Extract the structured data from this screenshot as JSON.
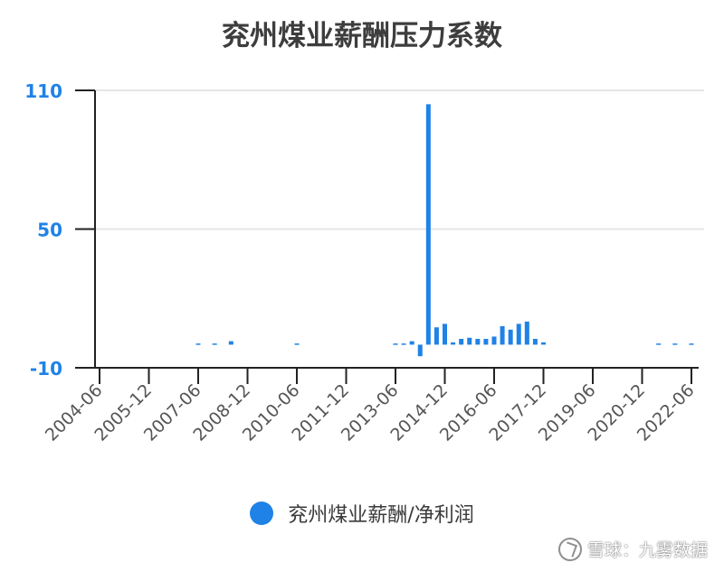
{
  "chart_data": {
    "type": "bar",
    "title": "兖州煤业薪酬压力系数",
    "xlabel": "",
    "ylabel": "",
    "ylim": [
      -10,
      110
    ],
    "yticks": [
      "110",
      "50",
      "-10"
    ],
    "xtick_labels": [
      "2004-06",
      "2005-12",
      "2007-06",
      "2008-12",
      "2010-06",
      "2011-12",
      "2013-06",
      "2014-12",
      "2016-06",
      "2017-12",
      "2019-06",
      "2020-12",
      "2022-06"
    ],
    "grid": true,
    "legend_position": "bottom",
    "series": [
      {
        "name": "兖州煤业薪酬/净利润",
        "color": "#1f82e6",
        "points": [
          {
            "x": "2007-06",
            "y": 0.5
          },
          {
            "x": "2007-12",
            "y": 0.5
          },
          {
            "x": "2008-06",
            "y": 1.5
          },
          {
            "x": "2010-06",
            "y": 0.5
          },
          {
            "x": "2013-06",
            "y": 0.5
          },
          {
            "x": "2013-09",
            "y": 0.5
          },
          {
            "x": "2013-12",
            "y": 1.5
          },
          {
            "x": "2014-03",
            "y": -5
          },
          {
            "x": "2014-06",
            "y": 104
          },
          {
            "x": "2014-09",
            "y": 7.5
          },
          {
            "x": "2014-12",
            "y": 9
          },
          {
            "x": "2015-03",
            "y": 1
          },
          {
            "x": "2015-06",
            "y": 2.5
          },
          {
            "x": "2015-09",
            "y": 3
          },
          {
            "x": "2015-12",
            "y": 2.5
          },
          {
            "x": "2016-03",
            "y": 2.5
          },
          {
            "x": "2016-06",
            "y": 3.5
          },
          {
            "x": "2016-09",
            "y": 8
          },
          {
            "x": "2016-12",
            "y": 6.5
          },
          {
            "x": "2017-03",
            "y": 9
          },
          {
            "x": "2017-06",
            "y": 10
          },
          {
            "x": "2017-09",
            "y": 2.5
          },
          {
            "x": "2017-12",
            "y": 1
          },
          {
            "x": "2021-06",
            "y": 0.5
          },
          {
            "x": "2021-12",
            "y": 0.5
          },
          {
            "x": "2022-06",
            "y": 0.5
          }
        ]
      }
    ]
  },
  "watermark": {
    "text": "雪球：九雾数据",
    "icon": "snowball-logo-icon"
  }
}
